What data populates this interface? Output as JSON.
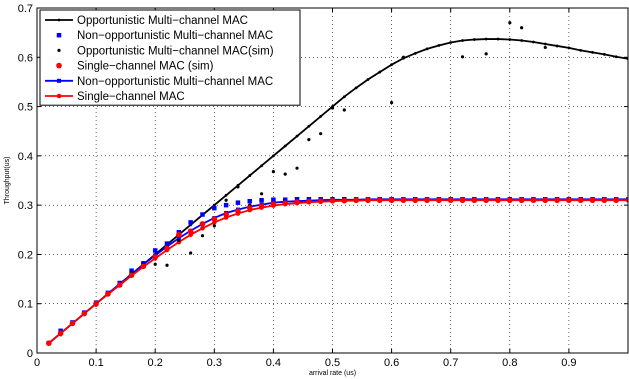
{
  "chart_data": {
    "type": "line",
    "title": "",
    "xlabel": "arrival rate (us)",
    "ylabel": "Throughput(us)",
    "xlim": [
      0,
      1
    ],
    "ylim": [
      0,
      0.7
    ],
    "x_ticks": [
      "0",
      "0.1",
      "0.2",
      "0.3",
      "0.4",
      "0.5",
      "0.6",
      "0.7",
      "0.8",
      "0.9"
    ],
    "y_ticks": [
      "0",
      "0.1",
      "0.2",
      "0.3",
      "0.4",
      "0.5",
      "0.6",
      "0.7"
    ],
    "grid": true,
    "legend_position": "top-left",
    "series": [
      {
        "name": "Opportunistic Multi−channel MAC",
        "style": "line-dot",
        "color": "#000000",
        "x": [
          0.02,
          0.04,
          0.06,
          0.08,
          0.1,
          0.12,
          0.14,
          0.16,
          0.18,
          0.2,
          0.22,
          0.24,
          0.26,
          0.28,
          0.3,
          0.32,
          0.34,
          0.36,
          0.38,
          0.4,
          0.42,
          0.44,
          0.46,
          0.48,
          0.5,
          0.52,
          0.54,
          0.56,
          0.58,
          0.6,
          0.62,
          0.64,
          0.66,
          0.68,
          0.7,
          0.72,
          0.74,
          0.76,
          0.78,
          0.8,
          0.82,
          0.84,
          0.86,
          0.88,
          0.9,
          0.92,
          0.94,
          0.96,
          0.98,
          1.0
        ],
        "y": [
          0.02,
          0.04,
          0.06,
          0.08,
          0.1,
          0.12,
          0.14,
          0.16,
          0.18,
          0.2,
          0.22,
          0.24,
          0.26,
          0.28,
          0.3,
          0.32,
          0.34,
          0.36,
          0.38,
          0.4,
          0.42,
          0.44,
          0.46,
          0.48,
          0.5,
          0.52,
          0.538,
          0.555,
          0.57,
          0.585,
          0.598,
          0.608,
          0.617,
          0.624,
          0.63,
          0.634,
          0.636,
          0.637,
          0.637,
          0.636,
          0.634,
          0.631,
          0.627,
          0.623,
          0.619,
          0.614,
          0.61,
          0.606,
          0.601,
          0.597
        ]
      },
      {
        "name": "Non−opportunistic Multi−channel MAC",
        "style": "square-markers",
        "color": "#0000ff",
        "x": [
          0.02,
          0.04,
          0.06,
          0.08,
          0.1,
          0.12,
          0.14,
          0.16,
          0.18,
          0.2,
          0.22,
          0.24,
          0.26,
          0.28,
          0.3,
          0.32,
          0.34,
          0.36,
          0.38,
          0.4,
          0.42,
          0.44,
          0.46,
          0.48,
          0.5,
          0.52,
          0.54,
          0.56,
          0.58,
          0.6,
          0.62,
          0.64,
          0.66,
          0.68,
          0.7,
          0.72,
          0.74,
          0.76,
          0.78,
          0.8,
          0.82,
          0.84,
          0.86,
          0.88,
          0.9,
          0.92,
          0.94,
          0.96,
          0.98
        ],
        "y": [
          0.02,
          0.045,
          0.062,
          0.082,
          0.102,
          0.122,
          0.142,
          0.167,
          0.182,
          0.208,
          0.222,
          0.245,
          0.265,
          0.281,
          0.294,
          0.3,
          0.305,
          0.308,
          0.31,
          0.311,
          0.311,
          0.312,
          0.312,
          0.312,
          0.312,
          0.312,
          0.312,
          0.312,
          0.312,
          0.312,
          0.312,
          0.312,
          0.312,
          0.312,
          0.312,
          0.312,
          0.312,
          0.312,
          0.312,
          0.312,
          0.312,
          0.312,
          0.312,
          0.312,
          0.312,
          0.312,
          0.312,
          0.312,
          0.312
        ]
      },
      {
        "name": "Opportunistic Multi−channel MAC(sim)",
        "style": "dot-markers",
        "color": "#000000",
        "x": [
          0.02,
          0.04,
          0.06,
          0.08,
          0.1,
          0.12,
          0.14,
          0.16,
          0.18,
          0.2,
          0.22,
          0.24,
          0.26,
          0.28,
          0.3,
          0.32,
          0.34,
          0.36,
          0.38,
          0.4,
          0.42,
          0.44,
          0.46,
          0.48,
          0.5,
          0.52,
          0.6,
          0.62,
          0.72,
          0.76,
          0.8,
          0.82,
          0.86
        ],
        "y": [
          0.02,
          0.037,
          0.06,
          0.08,
          0.097,
          0.12,
          0.14,
          0.163,
          0.18,
          0.18,
          0.178,
          0.228,
          0.203,
          0.238,
          0.258,
          0.31,
          0.337,
          0.3,
          0.323,
          0.368,
          0.363,
          0.375,
          0.433,
          0.445,
          0.497,
          0.493,
          0.508,
          0.6,
          0.601,
          0.607,
          0.67,
          0.66,
          0.62
        ]
      },
      {
        "name": "Single−channel MAC (sim)",
        "style": "circle-markers",
        "color": "#ff0000",
        "x": [
          0.02,
          0.04,
          0.06,
          0.08,
          0.1,
          0.12,
          0.14,
          0.16,
          0.18,
          0.2,
          0.22,
          0.24,
          0.26,
          0.28,
          0.3,
          0.32,
          0.34,
          0.36,
          0.38,
          0.4,
          0.42,
          0.44,
          0.46,
          0.48,
          0.5,
          0.52,
          0.54,
          0.56,
          0.58,
          0.6,
          0.62,
          0.64,
          0.66,
          0.68,
          0.7,
          0.72,
          0.74,
          0.76,
          0.78,
          0.8,
          0.82,
          0.84,
          0.86,
          0.88,
          0.9,
          0.92,
          0.94,
          0.96,
          0.98
        ],
        "y": [
          0.02,
          0.04,
          0.06,
          0.08,
          0.1,
          0.12,
          0.138,
          0.158,
          0.176,
          0.195,
          0.212,
          0.24,
          0.247,
          0.262,
          0.272,
          0.281,
          0.288,
          0.294,
          0.298,
          0.302,
          0.304,
          0.306,
          0.307,
          0.308,
          0.309,
          0.309,
          0.31,
          0.31,
          0.31,
          0.31,
          0.31,
          0.31,
          0.31,
          0.31,
          0.31,
          0.31,
          0.31,
          0.31,
          0.31,
          0.31,
          0.31,
          0.31,
          0.31,
          0.31,
          0.31,
          0.31,
          0.31,
          0.31,
          0.31
        ]
      },
      {
        "name": "Non−opportunistic Multi−channel MAC",
        "style": "line-square",
        "color": "#0000ff",
        "x": [
          0.02,
          0.04,
          0.06,
          0.08,
          0.1,
          0.12,
          0.14,
          0.16,
          0.18,
          0.2,
          0.22,
          0.24,
          0.26,
          0.28,
          0.3,
          0.32,
          0.34,
          0.36,
          0.38,
          0.4,
          0.42,
          0.44,
          0.46,
          0.48,
          0.5,
          0.52,
          0.54,
          0.56,
          0.58,
          0.6,
          0.62,
          0.64,
          0.66,
          0.68,
          0.7,
          0.72,
          0.74,
          0.76,
          0.78,
          0.8,
          0.82,
          0.84,
          0.86,
          0.88,
          0.9,
          0.92,
          0.94,
          0.96,
          0.98,
          1.0
        ],
        "y": [
          0.02,
          0.04,
          0.06,
          0.08,
          0.1,
          0.12,
          0.14,
          0.16,
          0.18,
          0.198,
          0.216,
          0.233,
          0.248,
          0.262,
          0.274,
          0.284,
          0.291,
          0.297,
          0.301,
          0.305,
          0.307,
          0.308,
          0.309,
          0.31,
          0.311,
          0.311,
          0.311,
          0.312,
          0.312,
          0.312,
          0.312,
          0.312,
          0.312,
          0.312,
          0.312,
          0.312,
          0.312,
          0.312,
          0.312,
          0.312,
          0.312,
          0.312,
          0.312,
          0.312,
          0.312,
          0.312,
          0.312,
          0.312,
          0.312,
          0.312
        ]
      },
      {
        "name": "Single−channel MAC",
        "style": "line-circle",
        "color": "#ff0000",
        "x": [
          0.02,
          0.04,
          0.06,
          0.08,
          0.1,
          0.12,
          0.14,
          0.16,
          0.18,
          0.2,
          0.22,
          0.24,
          0.26,
          0.28,
          0.3,
          0.32,
          0.34,
          0.36,
          0.38,
          0.4,
          0.42,
          0.44,
          0.46,
          0.48,
          0.5,
          0.52,
          0.54,
          0.56,
          0.58,
          0.6,
          0.62,
          0.64,
          0.66,
          0.68,
          0.7,
          0.72,
          0.74,
          0.76,
          0.78,
          0.8,
          0.82,
          0.84,
          0.86,
          0.88,
          0.9,
          0.92,
          0.94,
          0.96,
          0.98,
          1.0
        ],
        "y": [
          0.02,
          0.04,
          0.06,
          0.08,
          0.1,
          0.119,
          0.138,
          0.157,
          0.175,
          0.192,
          0.209,
          0.225,
          0.24,
          0.253,
          0.265,
          0.275,
          0.283,
          0.29,
          0.295,
          0.299,
          0.302,
          0.304,
          0.306,
          0.307,
          0.308,
          0.309,
          0.309,
          0.31,
          0.31,
          0.31,
          0.31,
          0.31,
          0.31,
          0.31,
          0.31,
          0.31,
          0.31,
          0.31,
          0.31,
          0.31,
          0.31,
          0.31,
          0.31,
          0.31,
          0.31,
          0.31,
          0.31,
          0.31,
          0.31,
          0.31
        ]
      }
    ]
  }
}
